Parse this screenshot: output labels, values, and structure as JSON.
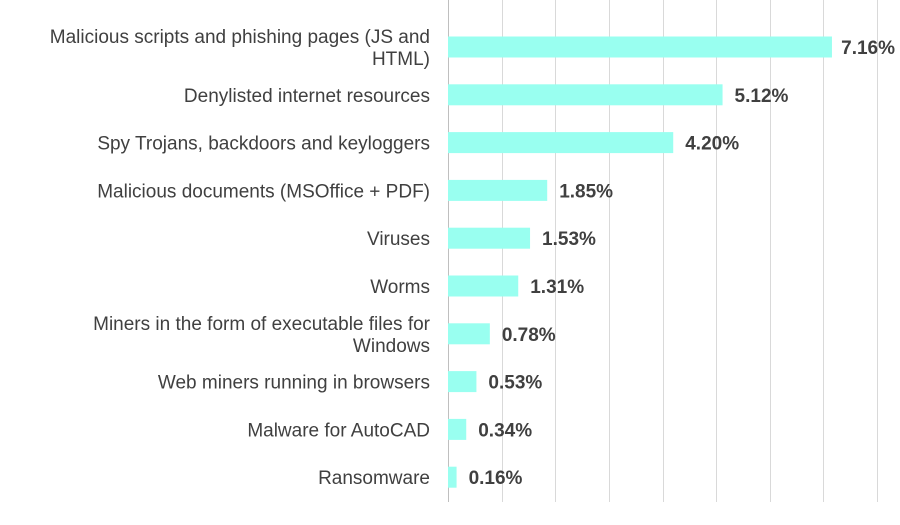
{
  "chart_data": {
    "type": "bar",
    "orientation": "horizontal",
    "categories": [
      "Malicious scripts and phishing pages (JS and HTML)",
      "Denylisted internet resources",
      "Spy Trojans, backdoors and keyloggers",
      "Malicious documents (MSOffice + PDF)",
      "Viruses",
      "Worms",
      "Miners in the form of executable files for Windows",
      "Web miners running in browsers",
      "Malware for AutoCAD",
      "Ransomware"
    ],
    "category_lines": [
      [
        "Malicious scripts and phishing pages (JS and",
        "HTML)"
      ],
      [
        "Denylisted internet resources"
      ],
      [
        "Spy Trojans, backdoors and keyloggers"
      ],
      [
        "Malicious documents (MSOffice + PDF)"
      ],
      [
        "Viruses"
      ],
      [
        "Worms"
      ],
      [
        "Miners in the form of executable files for",
        "Windows"
      ],
      [
        "Web miners running in browsers"
      ],
      [
        "Malware for AutoCAD"
      ],
      [
        "Ransomware"
      ]
    ],
    "values": [
      7.16,
      5.12,
      4.2,
      1.85,
      1.53,
      1.31,
      0.78,
      0.53,
      0.34,
      0.16
    ],
    "data_labels": [
      "7.16%",
      "5.12%",
      "4.20%",
      "1.85%",
      "1.53%",
      "1.31%",
      "0.78%",
      "0.53%",
      "0.34%",
      "0.16%"
    ],
    "xlim": [
      0,
      8
    ],
    "grid": true,
    "title": "",
    "xlabel": "",
    "ylabel": "",
    "bar_color": "#99fff0",
    "text_color": "#404040"
  }
}
